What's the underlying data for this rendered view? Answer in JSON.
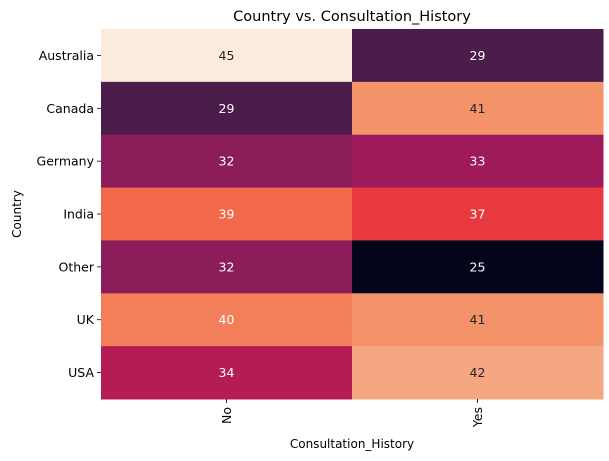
{
  "chart_data": {
    "type": "heatmap",
    "title": "Country vs. Consultation_History",
    "xlabel": "Consultation_History",
    "ylabel": "Country",
    "x_categories": [
      "No",
      "Yes"
    ],
    "y_categories": [
      "Australia",
      "Canada",
      "Germany",
      "India",
      "Other",
      "UK",
      "USA"
    ],
    "values": [
      [
        45,
        29
      ],
      [
        29,
        41
      ],
      [
        32,
        33
      ],
      [
        39,
        37
      ],
      [
        32,
        25
      ],
      [
        40,
        41
      ],
      [
        34,
        42
      ]
    ],
    "value_range": [
      25,
      45
    ],
    "colormap": "rocket",
    "colorbar": false,
    "annotations": true,
    "grid": false
  }
}
